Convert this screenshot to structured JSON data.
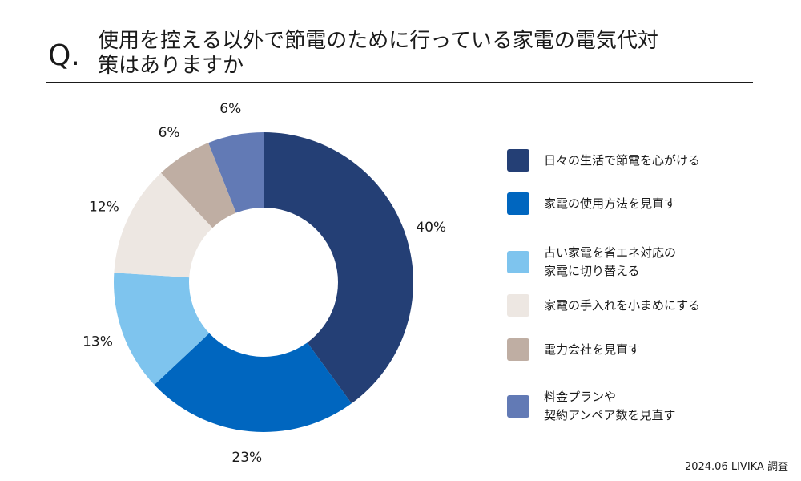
{
  "question": {
    "mark": "Q.",
    "title": "使用を控える以外で節電のために行っている家電の電気代対\n策はありますか"
  },
  "chart_data": {
    "type": "pie",
    "donut": true,
    "unit": "%",
    "categories": [
      "日々の生活で節電を心がける",
      "家電の使用方法を見直す",
      "古い家電を省エネ対応の\n家電に切り替える",
      "家電の手入れを小まめにする",
      "電力会社を見直す",
      "料金プランや\n契約アンペア数を見直す"
    ],
    "values": [
      40,
      23,
      13,
      12,
      6,
      6
    ],
    "value_labels": [
      "40%",
      "23%",
      "13%",
      "12%",
      "6%",
      "6%"
    ],
    "colors": [
      "#243F75",
      "#0066BF",
      "#7EC4EE",
      "#EDE7E2",
      "#BFAEA3",
      "#627AB5"
    ],
    "legend_position": "right"
  },
  "footer": {
    "source": "2024.06 LIVIKA 調査"
  }
}
